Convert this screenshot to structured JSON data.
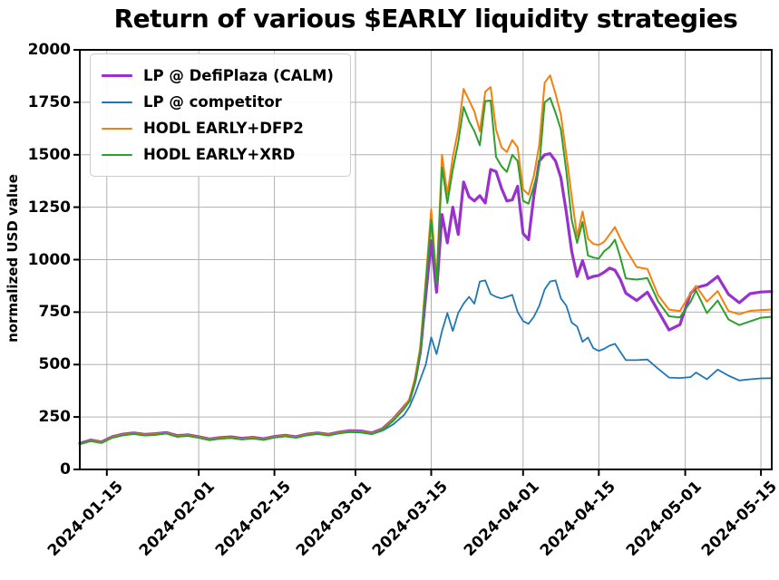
{
  "chart_data": {
    "type": "line",
    "title": "Return of various $EARLY liquidity strategies",
    "xlabel": "",
    "ylabel": "normalized USD value",
    "ylim": [
      0,
      2000
    ],
    "x_domain": [
      0,
      128
    ],
    "x_domain_note": "days since 2024-01-10",
    "grid": true,
    "grid_color": "#b0b0b0",
    "axis_color": "#000000",
    "legend_position": "upper-left",
    "y_ticks": {
      "values": [
        0,
        250,
        500,
        750,
        1000,
        1250,
        1500,
        1750,
        2000
      ],
      "labels": [
        "0",
        "250",
        "500",
        "750",
        "1000",
        "1250",
        "1500",
        "1750",
        "2000"
      ]
    },
    "x_ticks": {
      "days": [
        5,
        22,
        36,
        51,
        65,
        82,
        96,
        112,
        126
      ],
      "labels": [
        "2024-01-15",
        "2024-02-01",
        "2024-02-15",
        "2024-03-01",
        "2024-03-15",
        "2024-04-01",
        "2024-04-15",
        "2024-05-01",
        "2024-05-15"
      ]
    },
    "x": [
      0,
      2,
      4,
      6,
      8,
      10,
      12,
      14,
      16,
      18,
      20,
      22,
      24,
      26,
      28,
      30,
      32,
      34,
      36,
      38,
      40,
      42,
      44,
      46,
      48,
      50,
      52,
      54,
      56,
      58,
      60,
      61,
      62,
      63,
      64,
      65,
      66,
      67,
      68,
      69,
      70,
      71,
      72,
      73,
      74,
      75,
      76,
      77,
      78,
      79,
      80,
      81,
      82,
      83,
      84,
      85,
      86,
      87,
      88,
      89,
      90,
      91,
      92,
      93,
      94,
      95,
      96,
      97,
      98,
      99,
      100,
      101,
      103,
      105,
      107,
      109,
      111,
      113,
      114,
      116,
      118,
      120,
      122,
      124,
      126,
      128
    ],
    "series": [
      {
        "name": "LP @ DefiPlaza (CALM)",
        "color": "#9932cc",
        "line_width": 3.2,
        "values": [
          124,
          140,
          131,
          156,
          168,
          174,
          167,
          170,
          176,
          161,
          165,
          156,
          145,
          152,
          155,
          148,
          153,
          146,
          157,
          163,
          156,
          168,
          174,
          167,
          178,
          185,
          183,
          174,
          194,
          240,
          300,
          330,
          420,
          560,
          830,
          1090,
          845,
          1215,
          1080,
          1250,
          1120,
          1370,
          1300,
          1280,
          1305,
          1270,
          1430,
          1420,
          1340,
          1280,
          1285,
          1350,
          1125,
          1095,
          1305,
          1470,
          1500,
          1505,
          1470,
          1390,
          1225,
          1040,
          920,
          995,
          910,
          920,
          925,
          940,
          960,
          950,
          905,
          840,
          805,
          845,
          755,
          665,
          690,
          840,
          866,
          880,
          920,
          835,
          795,
          838,
          846,
          848
        ]
      },
      {
        "name": "LP @ competitor",
        "color": "#1f77b4",
        "line_width": 1.8,
        "values": [
          120,
          135,
          126,
          151,
          163,
          169,
          162,
          165,
          171,
          156,
          160,
          151,
          140,
          147,
          150,
          143,
          148,
          141,
          152,
          158,
          151,
          163,
          169,
          162,
          172,
          178,
          176,
          168,
          185,
          215,
          260,
          300,
          360,
          430,
          500,
          630,
          550,
          660,
          745,
          660,
          746,
          790,
          823,
          790,
          896,
          901,
          836,
          823,
          815,
          823,
          832,
          750,
          707,
          694,
          728,
          780,
          858,
          896,
          901,
          815,
          780,
          700,
          681,
          608,
          629,
          578,
          565,
          575,
          590,
          599,
          560,
          521,
          521,
          524,
          480,
          438,
          436,
          440,
          462,
          430,
          476,
          447,
          424,
          430,
          434,
          435
        ]
      },
      {
        "name": "HODL EARLY+DFP2",
        "color": "#f5800d",
        "line_width": 2,
        "values": [
          122,
          138,
          129,
          154,
          166,
          172,
          165,
          168,
          174,
          159,
          163,
          154,
          143,
          150,
          153,
          146,
          151,
          144,
          155,
          161,
          154,
          166,
          172,
          165,
          176,
          183,
          181,
          172,
          192,
          238,
          298,
          335,
          435,
          585,
          905,
          1240,
          900,
          1500,
          1310,
          1490,
          1620,
          1814,
          1760,
          1706,
          1612,
          1800,
          1823,
          1620,
          1535,
          1513,
          1570,
          1535,
          1335,
          1310,
          1400,
          1550,
          1843,
          1878,
          1790,
          1690,
          1500,
          1300,
          1110,
          1230,
          1100,
          1075,
          1070,
          1085,
          1120,
          1155,
          1100,
          1050,
          965,
          955,
          830,
          762,
          755,
          840,
          875,
          800,
          850,
          755,
          740,
          756,
          760,
          762
        ]
      },
      {
        "name": "HODL EARLY+XRD",
        "color": "#2ca02c",
        "line_width": 2,
        "values": [
          121,
          135,
          126,
          151,
          163,
          169,
          162,
          165,
          171,
          156,
          160,
          151,
          140,
          147,
          150,
          143,
          148,
          141,
          152,
          158,
          151,
          163,
          169,
          162,
          173,
          180,
          178,
          169,
          189,
          232,
          290,
          325,
          420,
          565,
          880,
          1190,
          885,
          1440,
          1270,
          1430,
          1560,
          1728,
          1660,
          1612,
          1545,
          1756,
          1758,
          1490,
          1445,
          1418,
          1500,
          1470,
          1280,
          1267,
          1350,
          1450,
          1750,
          1771,
          1700,
          1620,
          1420,
          1190,
          1080,
          1180,
          1020,
          1010,
          1005,
          1040,
          1060,
          1095,
          1010,
          910,
          905,
          912,
          800,
          730,
          725,
          800,
          853,
          745,
          805,
          715,
          688,
          706,
          723,
          728
        ]
      }
    ]
  }
}
